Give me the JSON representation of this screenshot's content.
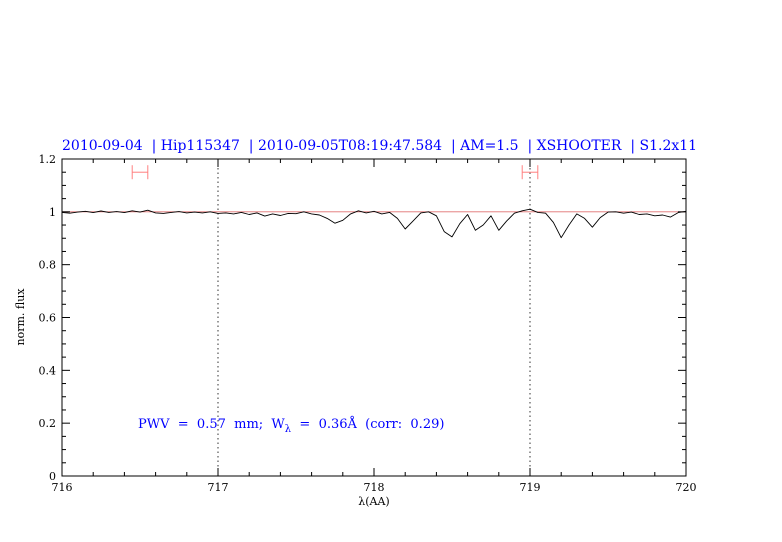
{
  "chart_data": {
    "type": "line",
    "title": "2010-09-04  | Hip115347  | 2010-09-05T08:19:47.584  | AM=1.5  | XSHOOTER  | S1.2x11",
    "xlabel": "λ(AA)",
    "ylabel": "norm. flux",
    "xlim": [
      716,
      720
    ],
    "ylim": [
      0,
      1.2
    ],
    "xticks": [
      "716",
      "717",
      "718",
      "719",
      "720"
    ],
    "yticks": [
      "0",
      "0.2",
      "0.4",
      "0.6",
      "0.8",
      "1",
      "1.2"
    ],
    "annotation": "PWV  =  0.57  mm;  W",
    "annotation_sub": "λ",
    "annotation_rest": "  =  0.36Å  (corr:  0.29)",
    "reference_level": 1.0,
    "dotted_verticals": [
      717,
      719
    ],
    "range_markers": [
      {
        "x": [
          716.45,
          716.55
        ],
        "y": 1.15
      },
      {
        "x": [
          718.95,
          719.05
        ],
        "y": 1.15
      }
    ],
    "colors": {
      "title": "#0000ff",
      "annotation": "#0000ff",
      "spectrum": "#000000",
      "reference": "#e07070",
      "markers": "#ff8080"
    },
    "series": [
      {
        "x": [
          716.0,
          716.05,
          716.1,
          716.15,
          716.2,
          716.25,
          716.3,
          716.35,
          716.4,
          716.45,
          716.5,
          716.55,
          716.6,
          716.65,
          716.7,
          716.75,
          716.8,
          716.85,
          716.9,
          716.95,
          717.0,
          717.05,
          717.1,
          717.15,
          717.2,
          717.25,
          717.3,
          717.35,
          717.4,
          717.45,
          717.5,
          717.55,
          717.6,
          717.65,
          717.7,
          717.75,
          717.8,
          717.85,
          717.9,
          717.95,
          718.0,
          718.05,
          718.1,
          718.15,
          718.2,
          718.25,
          718.3,
          718.35,
          718.4,
          718.45,
          718.5,
          718.55,
          718.6,
          718.65,
          718.7,
          718.75,
          718.8,
          718.85,
          718.9,
          718.95,
          719.0,
          719.05,
          719.1,
          719.15,
          719.2,
          719.25,
          719.3,
          719.35,
          719.4,
          719.45,
          719.5,
          719.55,
          719.6,
          719.65,
          719.7,
          719.75,
          719.8,
          719.85,
          719.9,
          719.95,
          720.0
        ],
        "y": [
          0.998,
          0.995,
          0.999,
          1.002,
          0.997,
          1.003,
          0.998,
          1.001,
          0.997,
          1.004,
          0.999,
          1.006,
          0.996,
          0.994,
          0.998,
          1.001,
          0.996,
          0.999,
          0.996,
          1.0,
          0.994,
          0.996,
          0.992,
          0.998,
          0.99,
          0.996,
          0.984,
          0.992,
          0.986,
          0.994,
          0.993,
          1.0,
          0.992,
          0.988,
          0.975,
          0.957,
          0.968,
          0.992,
          1.004,
          0.996,
          1.002,
          0.992,
          0.998,
          0.975,
          0.935,
          0.965,
          0.996,
          1.0,
          0.985,
          0.925,
          0.905,
          0.955,
          0.99,
          0.93,
          0.95,
          0.985,
          0.93,
          0.965,
          0.995,
          1.004,
          1.01,
          0.998,
          0.995,
          0.96,
          0.902,
          0.95,
          0.992,
          0.975,
          0.942,
          0.978,
          0.999,
          1.0,
          0.995,
          0.999,
          0.99,
          0.992,
          0.985,
          0.988,
          0.98,
          0.997,
          1.002
        ]
      }
    ]
  }
}
